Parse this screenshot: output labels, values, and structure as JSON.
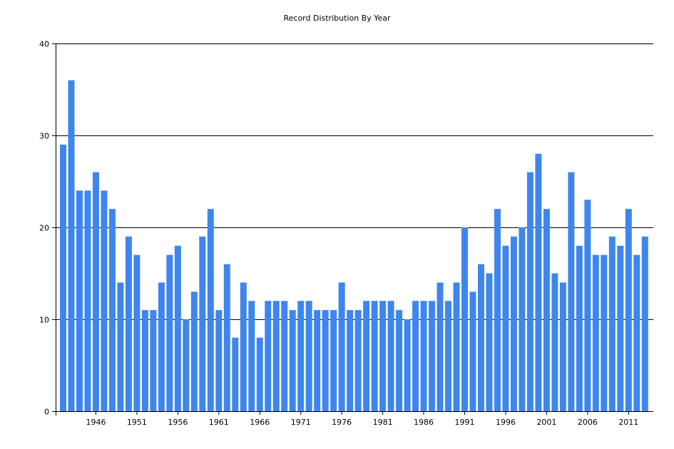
{
  "chart_data": {
    "type": "bar",
    "title": "Record Distribution By Year",
    "xlabel": "",
    "ylabel": "",
    "ylim": [
      0,
      40
    ],
    "yticks": [
      "0",
      "10",
      "20",
      "30",
      "40"
    ],
    "grid": "horizontal",
    "bar_color": "#3e86ee",
    "x": [
      1942,
      1943,
      1944,
      1945,
      1946,
      1947,
      1948,
      1949,
      1950,
      1951,
      1952,
      1953,
      1954,
      1955,
      1956,
      1957,
      1958,
      1959,
      1960,
      1961,
      1962,
      1963,
      1964,
      1965,
      1966,
      1967,
      1968,
      1969,
      1970,
      1971,
      1972,
      1973,
      1974,
      1975,
      1976,
      1977,
      1978,
      1979,
      1980,
      1981,
      1982,
      1983,
      1984,
      1985,
      1986,
      1987,
      1988,
      1989,
      1990,
      1991,
      1992,
      1993,
      1994,
      1995,
      1996,
      1997,
      1998,
      1999,
      2000,
      2001,
      2002,
      2003,
      2004,
      2005,
      2006,
      2007,
      2008,
      2009,
      2010,
      2011,
      2012,
      2013
    ],
    "values": [
      29,
      36,
      24,
      24,
      26,
      24,
      22,
      14,
      19,
      17,
      11,
      11,
      14,
      17,
      18,
      10,
      13,
      19,
      22,
      11,
      16,
      8,
      14,
      12,
      8,
      12,
      12,
      12,
      11,
      12,
      12,
      11,
      11,
      11,
      14,
      11,
      11,
      12,
      12,
      12,
      12,
      11,
      10,
      12,
      12,
      12,
      14,
      12,
      14,
      20,
      13,
      16,
      15,
      22,
      18,
      19,
      20,
      26,
      28,
      22,
      15,
      14,
      26,
      18,
      23,
      17,
      17,
      19,
      18,
      22,
      17,
      19
    ],
    "xtick_labels": [
      "1946",
      "1951",
      "1956",
      "1961",
      "1966",
      "1971",
      "1976",
      "1981",
      "1986",
      "1991",
      "1996",
      "2001",
      "2006",
      "2011"
    ]
  }
}
